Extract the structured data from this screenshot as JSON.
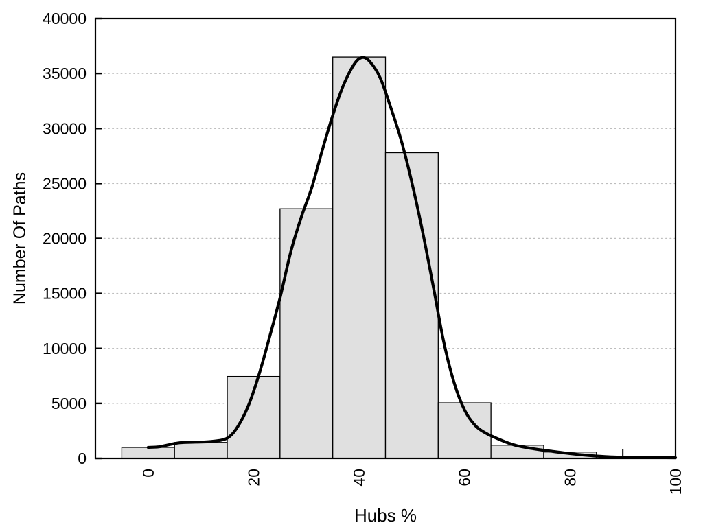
{
  "chart_data": {
    "type": "bar",
    "subtype": "histogram_with_density_curve",
    "title": "",
    "xlabel": "Hubs %",
    "ylabel": "Number Of Paths",
    "xlim": [
      -10,
      100
    ],
    "ylim": [
      0,
      40000
    ],
    "grid": "horizontal-dotted",
    "legend": "none",
    "xtick_labels": [
      "0",
      "20",
      "40",
      "60",
      "80",
      "100"
    ],
    "xtick_values": [
      0,
      20,
      40,
      60,
      80,
      100
    ],
    "xtick_minor_visible": [
      90
    ],
    "xtick_label_rotation_deg": -90,
    "ytick_labels": [
      "0",
      "5000",
      "10000",
      "15000",
      "20000",
      "25000",
      "30000",
      "35000",
      "40000"
    ],
    "ytick_values": [
      0,
      5000,
      10000,
      15000,
      20000,
      25000,
      30000,
      35000,
      40000
    ],
    "gridline_values": [
      5000,
      10000,
      15000,
      20000,
      25000,
      30000,
      35000
    ],
    "bars": {
      "bin_width": 10,
      "bin_centers": [
        0,
        10,
        20,
        30,
        40,
        50,
        60,
        70,
        80
      ],
      "bin_edges": [
        -5,
        5,
        15,
        25,
        35,
        45,
        55,
        65,
        75,
        85
      ],
      "values": [
        1000,
        1450,
        7450,
        22700,
        36500,
        27800,
        5050,
        1200,
        580
      ]
    },
    "curve_points": [
      [
        0,
        1000
      ],
      [
        2,
        1050
      ],
      [
        4,
        1250
      ],
      [
        6,
        1420
      ],
      [
        9,
        1480
      ],
      [
        12,
        1540
      ],
      [
        15,
        1850
      ],
      [
        17,
        2900
      ],
      [
        19,
        4800
      ],
      [
        21,
        7600
      ],
      [
        23,
        11000
      ],
      [
        25,
        14600
      ],
      [
        27,
        18700
      ],
      [
        29,
        21900
      ],
      [
        31,
        24600
      ],
      [
        33,
        28000
      ],
      [
        35,
        31200
      ],
      [
        37,
        33900
      ],
      [
        39,
        35800
      ],
      [
        40.5,
        36450
      ],
      [
        42,
        36100
      ],
      [
        44,
        34600
      ],
      [
        46,
        31900
      ],
      [
        48,
        28900
      ],
      [
        50,
        25100
      ],
      [
        52,
        20700
      ],
      [
        54,
        15800
      ],
      [
        56,
        10700
      ],
      [
        58,
        6900
      ],
      [
        60,
        4400
      ],
      [
        62,
        3000
      ],
      [
        64,
        2300
      ],
      [
        66,
        1850
      ],
      [
        68,
        1450
      ],
      [
        70,
        1150
      ],
      [
        73,
        880
      ],
      [
        76,
        680
      ],
      [
        79,
        490
      ],
      [
        82,
        340
      ],
      [
        85,
        215
      ],
      [
        88,
        130
      ],
      [
        91,
        90
      ],
      [
        94,
        75
      ],
      [
        97,
        68
      ],
      [
        100,
        62
      ]
    ],
    "colors": {
      "background": "#ffffff",
      "bar_fill": "#e0e0e0",
      "bar_stroke": "#000000",
      "curve": "#000000",
      "frame": "#000000",
      "gridline": "#bdbdbd",
      "text": "#000000"
    }
  }
}
